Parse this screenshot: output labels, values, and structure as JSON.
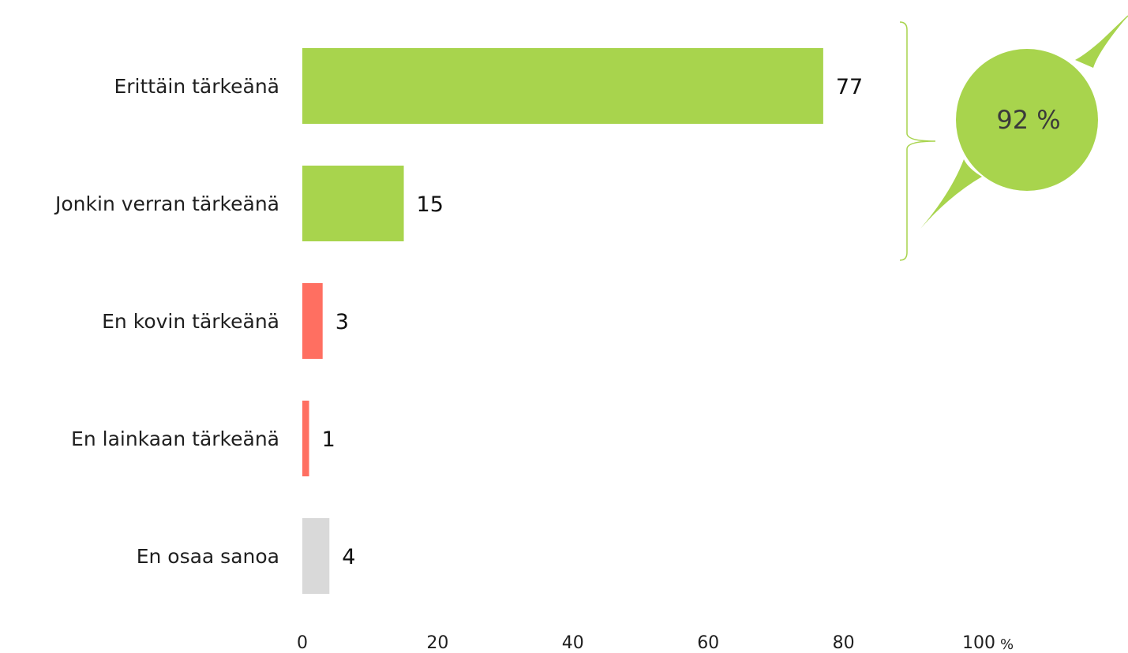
{
  "chart_data": {
    "type": "bar",
    "orientation": "horizontal",
    "categories": [
      "Erittäin tärkeänä",
      "Jonkin verran tärkeänä",
      "En kovin tärkeänä",
      "En lainkaan tärkeänä",
      "En osaa sanoa"
    ],
    "values": [
      77,
      15,
      3,
      1,
      4
    ],
    "bar_colors": [
      "#a8d44d",
      "#a8d44d",
      "#ff6f61",
      "#ff6f61",
      "#d9d9d9"
    ],
    "xlim": [
      0,
      100
    ],
    "xticks": [
      "0",
      "20",
      "40",
      "60",
      "80",
      "100"
    ],
    "x_unit": "%",
    "grid": false,
    "annotation": {
      "text": "92 %",
      "color": "#a8d44d",
      "spans_categories": [
        "Erittäin tärkeänä",
        "Jonkin verran tärkeänä"
      ]
    }
  }
}
